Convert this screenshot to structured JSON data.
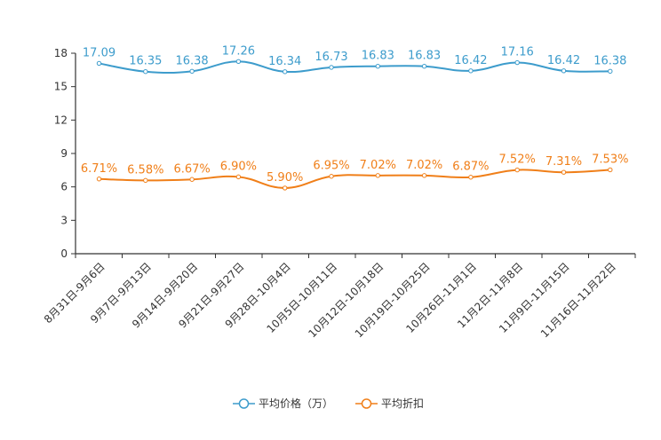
{
  "chart_data": {
    "type": "line",
    "title": "",
    "xlabel": "",
    "ylabel": "",
    "ylim": [
      0,
      18
    ],
    "yticks": [
      0,
      3,
      6,
      9,
      12,
      15,
      18
    ],
    "grid": false,
    "legend_position": "bottom",
    "categories": [
      "8月31日-9月6日",
      "9月7日-9月13日",
      "9月14日-9月20日",
      "9月21日-9月27日",
      "9月28日-10月4日",
      "10月5日-10月11日",
      "10月12日-10月18日",
      "10月19日-10月25日",
      "10月26日-11月1日",
      "11月2日-11月8日",
      "11月9日-11月15日",
      "11月16日-11月22日"
    ],
    "series": [
      {
        "name": "平均价格（万）",
        "color": "#3d9ccc",
        "values": [
          17.09,
          16.35,
          16.38,
          17.26,
          16.34,
          16.73,
          16.83,
          16.83,
          16.42,
          17.16,
          16.42,
          16.38
        ],
        "labels": [
          "17.09",
          "16.35",
          "16.38",
          "17.26",
          "16.34",
          "16.73",
          "16.83",
          "16.83",
          "16.42",
          "17.16",
          "16.42",
          "16.38"
        ]
      },
      {
        "name": "平均折扣",
        "color": "#f07f19",
        "values": [
          6.71,
          6.58,
          6.67,
          6.9,
          5.9,
          6.95,
          7.02,
          7.02,
          6.87,
          7.52,
          7.31,
          7.53
        ],
        "labels": [
          "6.71%",
          "6.58%",
          "6.67%",
          "6.90%",
          "5.90%",
          "6.95%",
          "7.02%",
          "7.02%",
          "6.87%",
          "7.52%",
          "7.31%",
          "7.53%"
        ]
      }
    ]
  }
}
